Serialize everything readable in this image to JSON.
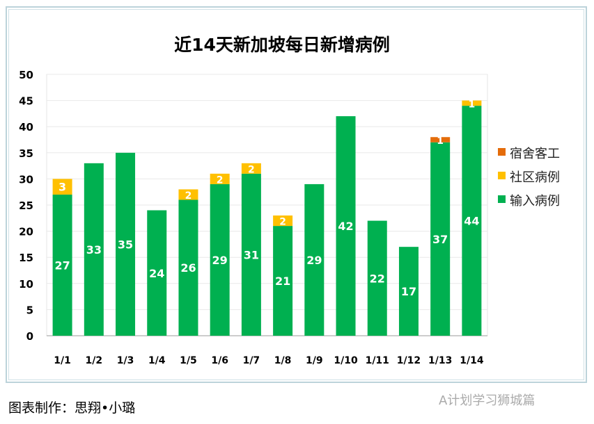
{
  "chart_data": {
    "type": "bar",
    "stacked": true,
    "title": "近14天新加坡每日新增病例",
    "categories": [
      "1/1",
      "1/2",
      "1/3",
      "1/4",
      "1/5",
      "1/6",
      "1/7",
      "1/8",
      "1/9",
      "1/10",
      "1/11",
      "1/12",
      "1/13",
      "1/14"
    ],
    "series": [
      {
        "name": "输入病例",
        "color": "#00b050",
        "values": [
          27,
          33,
          35,
          24,
          26,
          29,
          31,
          21,
          29,
          42,
          22,
          17,
          37,
          44
        ]
      },
      {
        "name": "社区病例",
        "color": "#ffc000",
        "values": [
          3,
          0,
          0,
          0,
          2,
          2,
          2,
          2,
          0,
          0,
          0,
          0,
          0,
          1
        ]
      },
      {
        "name": "宿舍客工",
        "color": "#e46c0a",
        "values": [
          0,
          0,
          0,
          0,
          0,
          0,
          0,
          0,
          0,
          0,
          0,
          0,
          1,
          0
        ]
      }
    ],
    "ylim": [
      0,
      50
    ],
    "yticks": [
      0,
      5,
      10,
      15,
      20,
      25,
      30,
      35,
      40,
      45,
      50
    ],
    "grid": true,
    "legend": "right"
  },
  "caption": "图表制作：思翔•小璐",
  "watermark": "A计划学习狮城篇"
}
